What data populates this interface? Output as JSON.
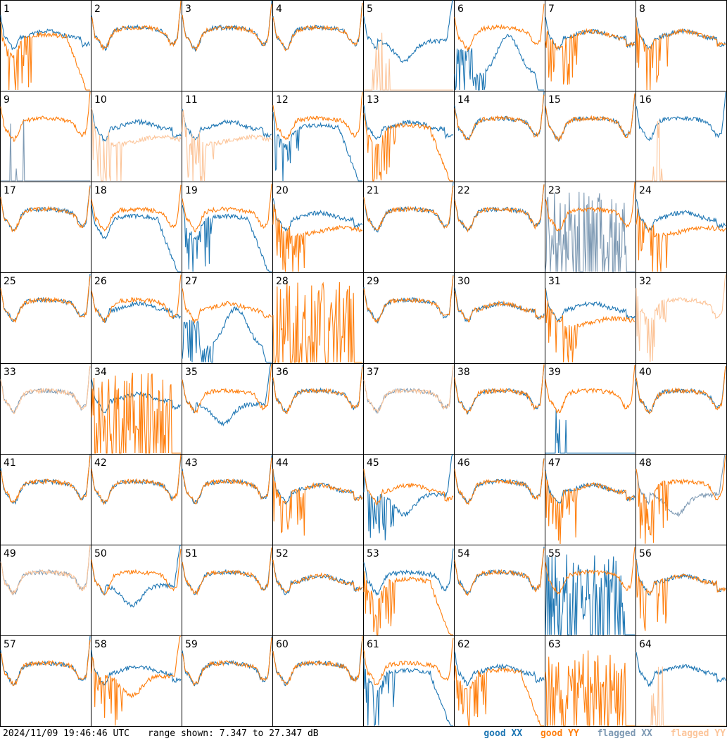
{
  "chart_data": {
    "type": "line",
    "description_kind": "small-multiples bandpass grid",
    "rows": 8,
    "cols": 8,
    "ylim_db": [
      7.347,
      27.347
    ],
    "colors": {
      "good_xx": "#1f77b4",
      "good_yy": "#ff7f0e",
      "flagged_xx": "#7d99b3",
      "flagged_yy": "#fcc59a"
    },
    "panels": [
      {
        "id": "1",
        "xx": "good",
        "yy": "good",
        "xx_shape": "flat",
        "yy_shape": "rolloff",
        "xx_noisy": 0,
        "yy_noisy": 1
      },
      {
        "id": "2",
        "xx": "good",
        "yy": "good",
        "xx_shape": "normal",
        "yy_shape": "normal",
        "xx_noisy": 0,
        "yy_noisy": 0
      },
      {
        "id": "3",
        "xx": "good",
        "yy": "good",
        "xx_shape": "normal",
        "yy_shape": "normal",
        "xx_noisy": 0,
        "yy_noisy": 0
      },
      {
        "id": "4",
        "xx": "good",
        "yy": "good",
        "xx_shape": "normal",
        "yy_shape": "normal",
        "xx_noisy": 0,
        "yy_noisy": 0
      },
      {
        "id": "5",
        "xx": "good",
        "yy": "flagged",
        "xx_shape": "dip",
        "yy_shape": "spike",
        "xx_noisy": 0,
        "yy_noisy": 0
      },
      {
        "id": "6",
        "xx": "good",
        "yy": "good",
        "xx_shape": "broken",
        "yy_shape": "normal",
        "xx_noisy": 1,
        "yy_noisy": 0
      },
      {
        "id": "7",
        "xx": "good",
        "yy": "good",
        "xx_shape": "flat",
        "yy_shape": "flat",
        "xx_noisy": 0,
        "yy_noisy": 1
      },
      {
        "id": "8",
        "xx": "good",
        "yy": "good",
        "xx_shape": "flat",
        "yy_shape": "flat",
        "xx_noisy": 0,
        "yy_noisy": 1
      },
      {
        "id": "9",
        "xx": "flagged",
        "yy": "good",
        "xx_shape": "spike",
        "yy_shape": "normal",
        "xx_noisy": 0,
        "yy_noisy": 0
      },
      {
        "id": "10",
        "xx": "good",
        "yy": "flagged",
        "xx_shape": "flat",
        "yy_shape": "lower",
        "xx_noisy": 0,
        "yy_noisy": 1
      },
      {
        "id": "11",
        "xx": "good",
        "yy": "flagged",
        "xx_shape": "flat",
        "yy_shape": "lower",
        "xx_noisy": 0,
        "yy_noisy": 1
      },
      {
        "id": "12",
        "xx": "good",
        "yy": "good",
        "xx_shape": "rolloff",
        "yy_shape": "normal",
        "xx_noisy": 1,
        "yy_noisy": 0
      },
      {
        "id": "13",
        "xx": "good",
        "yy": "good",
        "xx_shape": "flat",
        "yy_shape": "rolloff",
        "xx_noisy": 0,
        "yy_noisy": 1
      },
      {
        "id": "14",
        "xx": "good",
        "yy": "good",
        "xx_shape": "normal",
        "yy_shape": "normal",
        "xx_noisy": 0,
        "yy_noisy": 0
      },
      {
        "id": "15",
        "xx": "good",
        "yy": "good",
        "xx_shape": "normal",
        "yy_shape": "normal",
        "xx_noisy": 0,
        "yy_noisy": 0
      },
      {
        "id": "16",
        "xx": "good",
        "yy": "flagged",
        "xx_shape": "normal",
        "yy_shape": "spike",
        "xx_noisy": 0,
        "yy_noisy": 0
      },
      {
        "id": "17",
        "xx": "good",
        "yy": "good",
        "xx_shape": "normal",
        "yy_shape": "normal",
        "xx_noisy": 0,
        "yy_noisy": 0
      },
      {
        "id": "18",
        "xx": "good",
        "yy": "good",
        "xx_shape": "rolloff",
        "yy_shape": "normal",
        "xx_noisy": 0,
        "yy_noisy": 0
      },
      {
        "id": "19",
        "xx": "good",
        "yy": "good",
        "xx_shape": "rolloff",
        "yy_shape": "normal",
        "xx_noisy": 1,
        "yy_noisy": 0
      },
      {
        "id": "20",
        "xx": "good",
        "yy": "good",
        "xx_shape": "flat",
        "yy_shape": "lower",
        "xx_noisy": 0,
        "yy_noisy": 1
      },
      {
        "id": "21",
        "xx": "good",
        "yy": "good",
        "xx_shape": "normal",
        "yy_shape": "normal",
        "xx_noisy": 0,
        "yy_noisy": 0
      },
      {
        "id": "22",
        "xx": "good",
        "yy": "good",
        "xx_shape": "normal",
        "yy_shape": "normal",
        "xx_noisy": 0,
        "yy_noisy": 0
      },
      {
        "id": "23",
        "xx": "flagged",
        "yy": "good",
        "xx_shape": "spikes",
        "yy_shape": "normal",
        "xx_noisy": 0,
        "yy_noisy": 0
      },
      {
        "id": "24",
        "xx": "good",
        "yy": "good",
        "xx_shape": "flat",
        "yy_shape": "lower",
        "xx_noisy": 0,
        "yy_noisy": 1
      },
      {
        "id": "25",
        "xx": "good",
        "yy": "good",
        "xx_shape": "normal",
        "yy_shape": "normal",
        "xx_noisy": 0,
        "yy_noisy": 0
      },
      {
        "id": "26",
        "xx": "good",
        "yy": "good",
        "xx_shape": "flat",
        "yy_shape": "normal",
        "xx_noisy": 0,
        "yy_noisy": 0
      },
      {
        "id": "27",
        "xx": "good",
        "yy": "good",
        "xx_shape": "broken",
        "yy_shape": "flat",
        "xx_noisy": 1,
        "yy_noisy": 0
      },
      {
        "id": "28",
        "xx": "none",
        "yy": "good",
        "xx_shape": "none",
        "yy_shape": "spikes",
        "xx_noisy": 0,
        "yy_noisy": 0
      },
      {
        "id": "29",
        "xx": "good",
        "yy": "good",
        "xx_shape": "normal",
        "yy_shape": "normal",
        "xx_noisy": 0,
        "yy_noisy": 0
      },
      {
        "id": "30",
        "xx": "good",
        "yy": "good",
        "xx_shape": "flat",
        "yy_shape": "flat",
        "xx_noisy": 0,
        "yy_noisy": 0
      },
      {
        "id": "31",
        "xx": "good",
        "yy": "good",
        "xx_shape": "flat",
        "yy_shape": "lower",
        "xx_noisy": 0,
        "yy_noisy": 1
      },
      {
        "id": "32",
        "xx": "none",
        "yy": "flagged",
        "xx_shape": "none",
        "yy_shape": "normal",
        "xx_noisy": 0,
        "yy_noisy": 1
      },
      {
        "id": "33",
        "xx": "flagged",
        "yy": "flagged",
        "xx_shape": "normal",
        "yy_shape": "normal",
        "xx_noisy": 0,
        "yy_noisy": 0
      },
      {
        "id": "34",
        "xx": "good",
        "yy": "good",
        "xx_shape": "flat",
        "yy_shape": "spikes",
        "xx_noisy": 0,
        "yy_noisy": 0
      },
      {
        "id": "35",
        "xx": "good",
        "yy": "good",
        "xx_shape": "dip",
        "yy_shape": "normal",
        "xx_noisy": 0,
        "yy_noisy": 0
      },
      {
        "id": "36",
        "xx": "good",
        "yy": "good",
        "xx_shape": "normal",
        "yy_shape": "normal",
        "xx_noisy": 0,
        "yy_noisy": 0
      },
      {
        "id": "37",
        "xx": "flagged",
        "yy": "flagged",
        "xx_shape": "normal",
        "yy_shape": "normal",
        "xx_noisy": 0,
        "yy_noisy": 0
      },
      {
        "id": "38",
        "xx": "good",
        "yy": "good",
        "xx_shape": "normal",
        "yy_shape": "normal",
        "xx_noisy": 0,
        "yy_noisy": 0
      },
      {
        "id": "39",
        "xx": "good",
        "yy": "good",
        "xx_shape": "spike",
        "yy_shape": "normal",
        "xx_noisy": 0,
        "yy_noisy": 0
      },
      {
        "id": "40",
        "xx": "good",
        "yy": "good",
        "xx_shape": "normal",
        "yy_shape": "normal",
        "xx_noisy": 0,
        "yy_noisy": 0
      },
      {
        "id": "41",
        "xx": "good",
        "yy": "good",
        "xx_shape": "normal",
        "yy_shape": "normal",
        "xx_noisy": 0,
        "yy_noisy": 0
      },
      {
        "id": "42",
        "xx": "good",
        "yy": "good",
        "xx_shape": "normal",
        "yy_shape": "normal",
        "xx_noisy": 0,
        "yy_noisy": 0
      },
      {
        "id": "43",
        "xx": "good",
        "yy": "good",
        "xx_shape": "normal",
        "yy_shape": "normal",
        "xx_noisy": 0,
        "yy_noisy": 0
      },
      {
        "id": "44",
        "xx": "good",
        "yy": "good",
        "xx_shape": "flat",
        "yy_shape": "flat",
        "xx_noisy": 0,
        "yy_noisy": 1
      },
      {
        "id": "45",
        "xx": "good",
        "yy": "good",
        "xx_shape": "dip",
        "yy_shape": "flat",
        "xx_noisy": 1,
        "yy_noisy": 0
      },
      {
        "id": "46",
        "xx": "good",
        "yy": "good",
        "xx_shape": "normal",
        "yy_shape": "normal",
        "xx_noisy": 0,
        "yy_noisy": 0
      },
      {
        "id": "47",
        "xx": "good",
        "yy": "good",
        "xx_shape": "flat",
        "yy_shape": "flat",
        "xx_noisy": 0,
        "yy_noisy": 1
      },
      {
        "id": "48",
        "xx": "flagged",
        "yy": "good",
        "xx_shape": "dip",
        "yy_shape": "normal",
        "xx_noisy": 0,
        "yy_noisy": 1
      },
      {
        "id": "49",
        "xx": "flagged",
        "yy": "flagged",
        "xx_shape": "normal",
        "yy_shape": "normal",
        "xx_noisy": 0,
        "yy_noisy": 0
      },
      {
        "id": "50",
        "xx": "good",
        "yy": "good",
        "xx_shape": "dip",
        "yy_shape": "normal",
        "xx_noisy": 0,
        "yy_noisy": 0
      },
      {
        "id": "51",
        "xx": "good",
        "yy": "good",
        "xx_shape": "normal",
        "yy_shape": "normal",
        "xx_noisy": 0,
        "yy_noisy": 0
      },
      {
        "id": "52",
        "xx": "good",
        "yy": "good",
        "xx_shape": "flat",
        "yy_shape": "flat",
        "xx_noisy": 0,
        "yy_noisy": 0
      },
      {
        "id": "53",
        "xx": "good",
        "yy": "good",
        "xx_shape": "normal",
        "yy_shape": "rolloff",
        "xx_noisy": 0,
        "yy_noisy": 1
      },
      {
        "id": "54",
        "xx": "good",
        "yy": "good",
        "xx_shape": "normal",
        "yy_shape": "normal",
        "xx_noisy": 0,
        "yy_noisy": 0
      },
      {
        "id": "55",
        "xx": "good",
        "yy": "good",
        "xx_shape": "spikes",
        "yy_shape": "normal",
        "xx_noisy": 0,
        "yy_noisy": 0
      },
      {
        "id": "56",
        "xx": "good",
        "yy": "good",
        "xx_shape": "flat",
        "yy_shape": "flat",
        "xx_noisy": 0,
        "yy_noisy": 1
      },
      {
        "id": "57",
        "xx": "good",
        "yy": "good",
        "xx_shape": "normal",
        "yy_shape": "normal",
        "xx_noisy": 0,
        "yy_noisy": 0
      },
      {
        "id": "58",
        "xx": "good",
        "yy": "good",
        "xx_shape": "flat",
        "yy_shape": "dip",
        "xx_noisy": 0,
        "yy_noisy": 1
      },
      {
        "id": "59",
        "xx": "good",
        "yy": "good",
        "xx_shape": "normal",
        "yy_shape": "normal",
        "xx_noisy": 0,
        "yy_noisy": 0
      },
      {
        "id": "60",
        "xx": "good",
        "yy": "good",
        "xx_shape": "normal",
        "yy_shape": "normal",
        "xx_noisy": 0,
        "yy_noisy": 0
      },
      {
        "id": "61",
        "xx": "good",
        "yy": "good",
        "xx_shape": "rolloff",
        "yy_shape": "normal",
        "xx_noisy": 1,
        "yy_noisy": 0
      },
      {
        "id": "62",
        "xx": "good",
        "yy": "good",
        "xx_shape": "flat",
        "yy_shape": "rolloff",
        "xx_noisy": 0,
        "yy_noisy": 1
      },
      {
        "id": "63",
        "xx": "none",
        "yy": "good",
        "xx_shape": "none",
        "yy_shape": "spikes",
        "xx_noisy": 0,
        "yy_noisy": 0
      },
      {
        "id": "64",
        "xx": "good",
        "yy": "flagged",
        "xx_shape": "flat",
        "yy_shape": "spike",
        "xx_noisy": 0,
        "yy_noisy": 0
      }
    ]
  },
  "footer": {
    "timestamp": "2024/11/09 19:46:46 UTC",
    "range_text": "range shown: 7.347 to 27.347 dB"
  },
  "legend": {
    "good_xx": "good XX",
    "good_yy": "good YY",
    "flagged_xx": "flagged XX",
    "flagged_yy": "flagged YY"
  }
}
